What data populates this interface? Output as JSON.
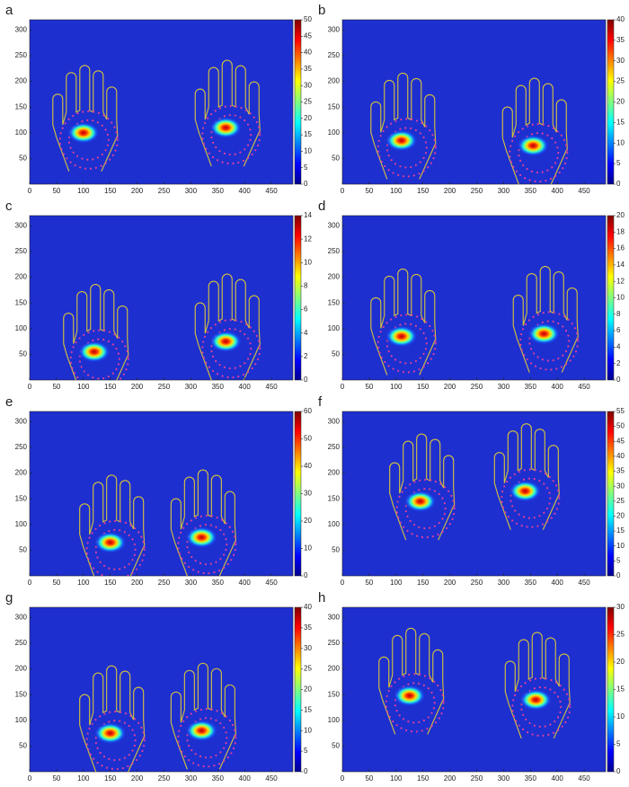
{
  "chart_data": [
    {
      "type": "heatmap",
      "label": "a",
      "xlim": [
        0,
        490
      ],
      "ylim": [
        0,
        320
      ],
      "xticks": [
        0,
        50,
        100,
        150,
        200,
        250,
        300,
        350,
        400,
        450
      ],
      "yticks": [
        50,
        100,
        150,
        200,
        250,
        300
      ],
      "clim": [
        0,
        50
      ],
      "cticks": [
        0,
        5,
        10,
        15,
        20,
        25,
        30,
        35,
        40,
        45,
        50
      ],
      "hotspots": [
        {
          "x": 100,
          "y": 100
        },
        {
          "x": 365,
          "y": 110
        }
      ]
    },
    {
      "type": "heatmap",
      "label": "b",
      "xlim": [
        0,
        490
      ],
      "ylim": [
        0,
        320
      ],
      "xticks": [
        0,
        50,
        100,
        150,
        200,
        250,
        300,
        350,
        400,
        450
      ],
      "yticks": [
        50,
        100,
        150,
        200,
        250,
        300
      ],
      "clim": [
        0,
        40
      ],
      "cticks": [
        0,
        5,
        10,
        15,
        20,
        25,
        30,
        35,
        40
      ],
      "hotspots": [
        {
          "x": 110,
          "y": 85
        },
        {
          "x": 355,
          "y": 75
        }
      ]
    },
    {
      "type": "heatmap",
      "label": "c",
      "xlim": [
        0,
        490
      ],
      "ylim": [
        0,
        320
      ],
      "xticks": [
        0,
        50,
        100,
        150,
        200,
        250,
        300,
        350,
        400,
        450
      ],
      "yticks": [
        50,
        100,
        150,
        200,
        250,
        300
      ],
      "clim": [
        0,
        14
      ],
      "cticks": [
        0,
        2,
        4,
        6,
        8,
        10,
        12,
        14
      ],
      "hotspots": [
        {
          "x": 120,
          "y": 55
        },
        {
          "x": 365,
          "y": 75
        }
      ]
    },
    {
      "type": "heatmap",
      "label": "d",
      "xlim": [
        0,
        490
      ],
      "ylim": [
        0,
        320
      ],
      "xticks": [
        0,
        50,
        100,
        150,
        200,
        250,
        300,
        350,
        400,
        450
      ],
      "yticks": [
        50,
        100,
        150,
        200,
        250,
        300
      ],
      "clim": [
        0,
        20
      ],
      "cticks": [
        0,
        2,
        4,
        6,
        8,
        10,
        12,
        14,
        16,
        18,
        20
      ],
      "hotspots": [
        {
          "x": 110,
          "y": 85
        },
        {
          "x": 375,
          "y": 90
        }
      ]
    },
    {
      "type": "heatmap",
      "label": "e",
      "xlim": [
        0,
        490
      ],
      "ylim": [
        0,
        320
      ],
      "xticks": [
        0,
        50,
        100,
        150,
        200,
        250,
        300,
        350,
        400,
        450
      ],
      "yticks": [
        50,
        100,
        150,
        200,
        250,
        300
      ],
      "clim": [
        0,
        60
      ],
      "cticks": [
        0,
        10,
        20,
        30,
        40,
        50,
        60
      ],
      "hotspots": [
        {
          "x": 150,
          "y": 65
        },
        {
          "x": 320,
          "y": 75
        }
      ]
    },
    {
      "type": "heatmap",
      "label": "f",
      "xlim": [
        0,
        490
      ],
      "ylim": [
        0,
        320
      ],
      "xticks": [
        0,
        50,
        100,
        150,
        200,
        250,
        300,
        350,
        400,
        450
      ],
      "yticks": [
        50,
        100,
        150,
        200,
        250,
        300
      ],
      "clim": [
        0,
        55
      ],
      "cticks": [
        0,
        5,
        10,
        15,
        20,
        25,
        30,
        35,
        40,
        45,
        50,
        55
      ],
      "hotspots": [
        {
          "x": 145,
          "y": 145
        },
        {
          "x": 340,
          "y": 165
        }
      ]
    },
    {
      "type": "heatmap",
      "label": "g",
      "xlim": [
        0,
        490
      ],
      "ylim": [
        0,
        320
      ],
      "xticks": [
        0,
        50,
        100,
        150,
        200,
        250,
        300,
        350,
        400,
        450
      ],
      "yticks": [
        50,
        100,
        150,
        200,
        250,
        300
      ],
      "clim": [
        0,
        40
      ],
      "cticks": [
        0,
        5,
        10,
        15,
        20,
        25,
        30,
        35,
        40
      ],
      "hotspots": [
        {
          "x": 150,
          "y": 75
        },
        {
          "x": 320,
          "y": 80
        }
      ]
    },
    {
      "type": "heatmap",
      "label": "h",
      "xlim": [
        0,
        490
      ],
      "ylim": [
        0,
        320
      ],
      "xticks": [
        0,
        50,
        100,
        150,
        200,
        250,
        300,
        350,
        400,
        450
      ],
      "yticks": [
        50,
        100,
        150,
        200,
        250,
        300
      ],
      "clim": [
        0,
        30
      ],
      "cticks": [
        0,
        5,
        10,
        15,
        20,
        25,
        30
      ],
      "hotspots": [
        {
          "x": 125,
          "y": 148
        },
        {
          "x": 360,
          "y": 140
        }
      ]
    }
  ]
}
